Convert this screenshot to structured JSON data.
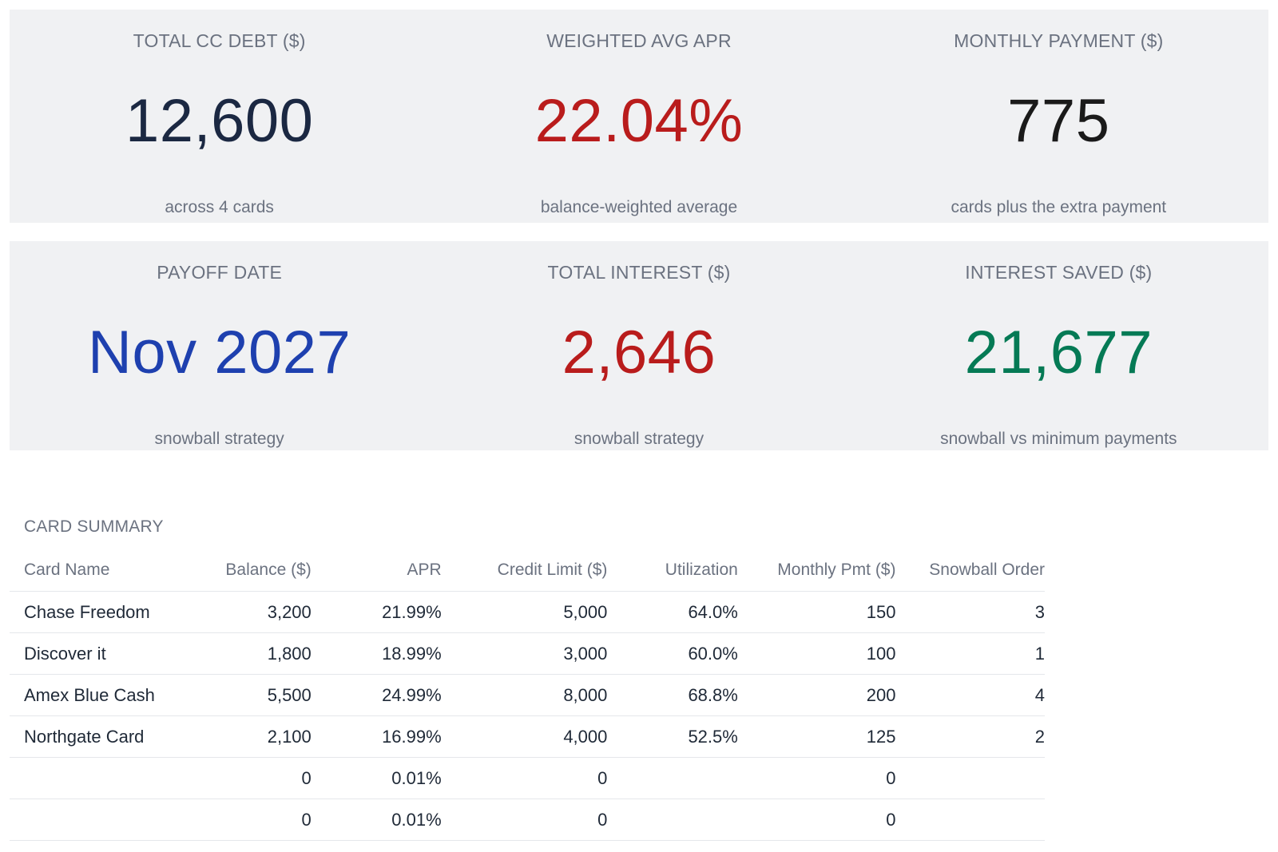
{
  "colors": {
    "navy": "#1b2842",
    "red": "#b91c1c",
    "black": "#1a1a1a",
    "blue": "#1e40af",
    "green": "#057a55",
    "band_bg": "#f0f1f3",
    "muted": "#6b7280"
  },
  "kpi_row_1": [
    {
      "label": "TOTAL CC DEBT ($)",
      "value": "12,600",
      "sub": "across 4 cards",
      "color": "#1b2842"
    },
    {
      "label": "WEIGHTED AVG APR",
      "value": "22.04%",
      "sub": "balance-weighted average",
      "color": "#b91c1c"
    },
    {
      "label": "MONTHLY PAYMENT ($)",
      "value": "775",
      "sub": "cards plus the extra payment",
      "color": "#1a1a1a"
    }
  ],
  "kpi_row_2": [
    {
      "label": "PAYOFF DATE",
      "value": "Nov 2027",
      "sub": "snowball strategy",
      "color": "#1e40af"
    },
    {
      "label": "TOTAL INTEREST ($)",
      "value": "2,646",
      "sub": "snowball strategy",
      "color": "#b91c1c"
    },
    {
      "label": "INTEREST SAVED ($)",
      "value": "21,677",
      "sub": "snowball vs minimum payments",
      "color": "#057a55"
    }
  ],
  "card_summary": {
    "title": "CARD SUMMARY",
    "columns": [
      "Card Name",
      "Balance ($)",
      "APR",
      "Credit Limit ($)",
      "Utilization",
      "Monthly Pmt ($)",
      "Snowball Order"
    ],
    "rows": [
      [
        "Chase Freedom",
        "3,200",
        "21.99%",
        "5,000",
        "64.0%",
        "150",
        "3"
      ],
      [
        "Discover it",
        "1,800",
        "18.99%",
        "3,000",
        "60.0%",
        "100",
        "1"
      ],
      [
        "Amex Blue Cash",
        "5,500",
        "24.99%",
        "8,000",
        "68.8%",
        "200",
        "4"
      ],
      [
        "Northgate Card",
        "2,100",
        "16.99%",
        "4,000",
        "52.5%",
        "125",
        "2"
      ],
      [
        "",
        "0",
        "0.01%",
        "0",
        "",
        "0",
        ""
      ],
      [
        "",
        "0",
        "0.01%",
        "0",
        "",
        "0",
        ""
      ]
    ]
  }
}
